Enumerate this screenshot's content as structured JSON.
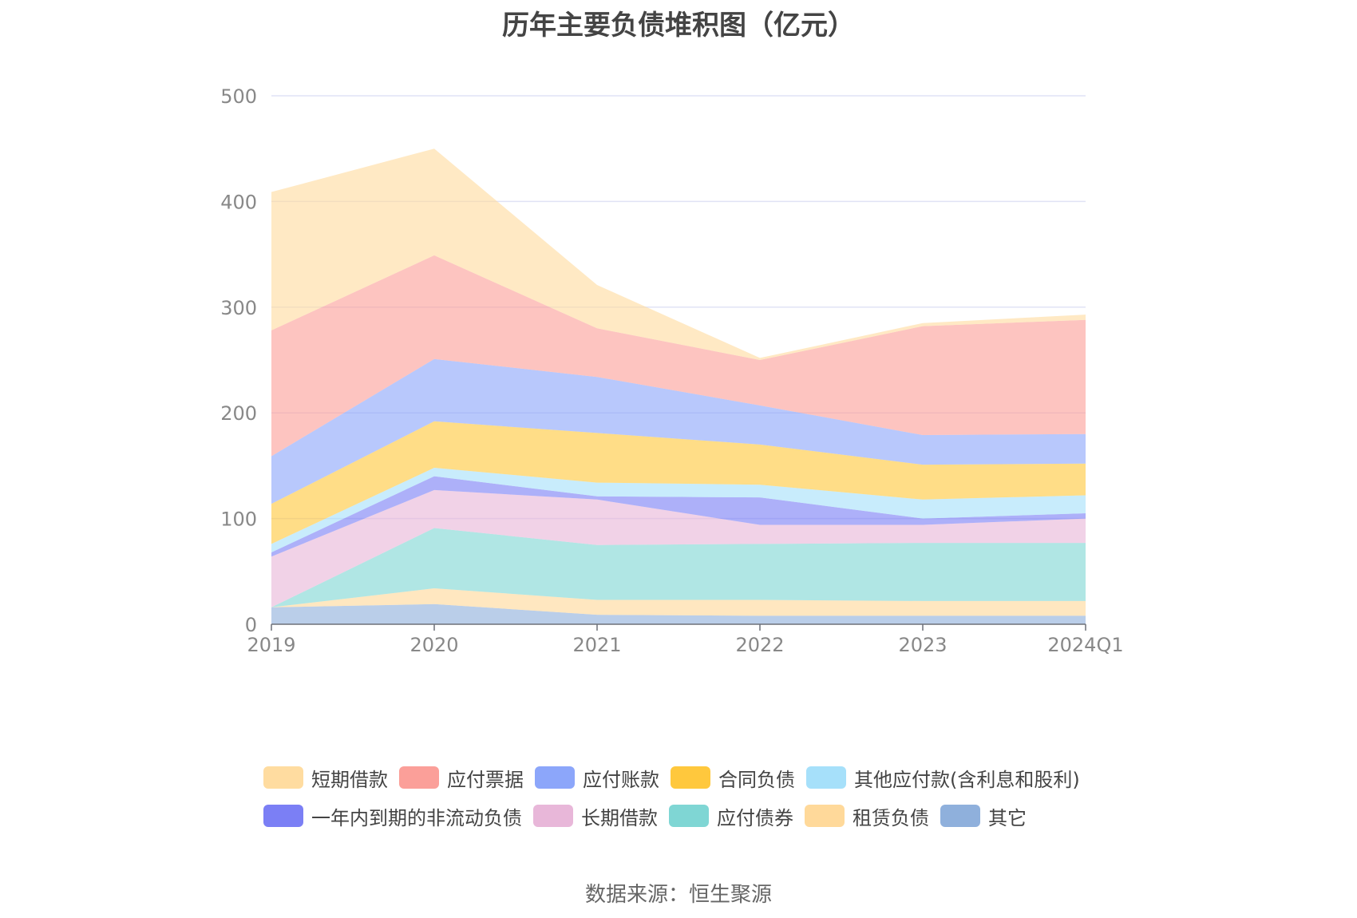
{
  "chart_data": {
    "type": "area",
    "stacked": true,
    "title": "历年主要负债堆积图（亿元）",
    "categories": [
      "2019",
      "2020",
      "2021",
      "2022",
      "2023",
      "2024Q1"
    ],
    "ylim": [
      0,
      500
    ],
    "yticks": [
      0,
      100,
      200,
      300,
      400,
      500
    ],
    "grid": true,
    "legend_position": "bottom",
    "series": [
      {
        "name": "其它",
        "color": "#8fb0dc",
        "values": [
          16,
          19,
          9,
          8,
          8,
          8
        ]
      },
      {
        "name": "租赁负债",
        "color": "#ffd99a",
        "values": [
          0,
          15,
          14,
          15,
          14,
          14
        ]
      },
      {
        "name": "应付债券",
        "color": "#7fd6d4",
        "values": [
          0,
          57,
          52,
          53,
          55,
          55
        ]
      },
      {
        "name": "长期借款",
        "color": "#e8b7d9",
        "values": [
          48,
          36,
          43,
          18,
          17,
          23
        ]
      },
      {
        "name": "一年内到期的非流动负债",
        "color": "#7b7ff5",
        "values": [
          4,
          13,
          3,
          26,
          6,
          5
        ]
      },
      {
        "name": "其他应付款(含利息和股利)",
        "color": "#a6e0fa",
        "values": [
          8,
          8,
          13,
          12,
          18,
          17
        ]
      },
      {
        "name": "合同负债",
        "color": "#ffc83d",
        "values": [
          38,
          44,
          47,
          38,
          33,
          30
        ]
      },
      {
        "name": "应付账款",
        "color": "#8ca6fa",
        "values": [
          45,
          59,
          53,
          37,
          28,
          28
        ]
      },
      {
        "name": "应付票据",
        "color": "#fb9f99",
        "values": [
          119,
          98,
          46,
          43,
          103,
          108
        ]
      },
      {
        "name": "短期借款",
        "color": "#ffdca0",
        "values": [
          131,
          101,
          41,
          2,
          3,
          5
        ]
      }
    ]
  },
  "legend": {
    "row1": [
      {
        "name": "短期借款",
        "color": "#ffdca0"
      },
      {
        "name": "应付票据",
        "color": "#fb9f99"
      },
      {
        "name": "应付账款",
        "color": "#8ca6fa"
      },
      {
        "name": "合同负债",
        "color": "#ffc83d"
      },
      {
        "name": "其他应付款(含利息和股利)",
        "color": "#a6e0fa"
      }
    ],
    "row2": [
      {
        "name": "一年内到期的非流动负债",
        "color": "#7b7ff5"
      },
      {
        "name": "长期借款",
        "color": "#e8b7d9"
      },
      {
        "name": "应付债券",
        "color": "#7fd6d4"
      },
      {
        "name": "租赁负债",
        "color": "#ffd99a"
      },
      {
        "name": "其它",
        "color": "#8fb0dc"
      }
    ]
  },
  "source": "数据来源：恒生聚源"
}
